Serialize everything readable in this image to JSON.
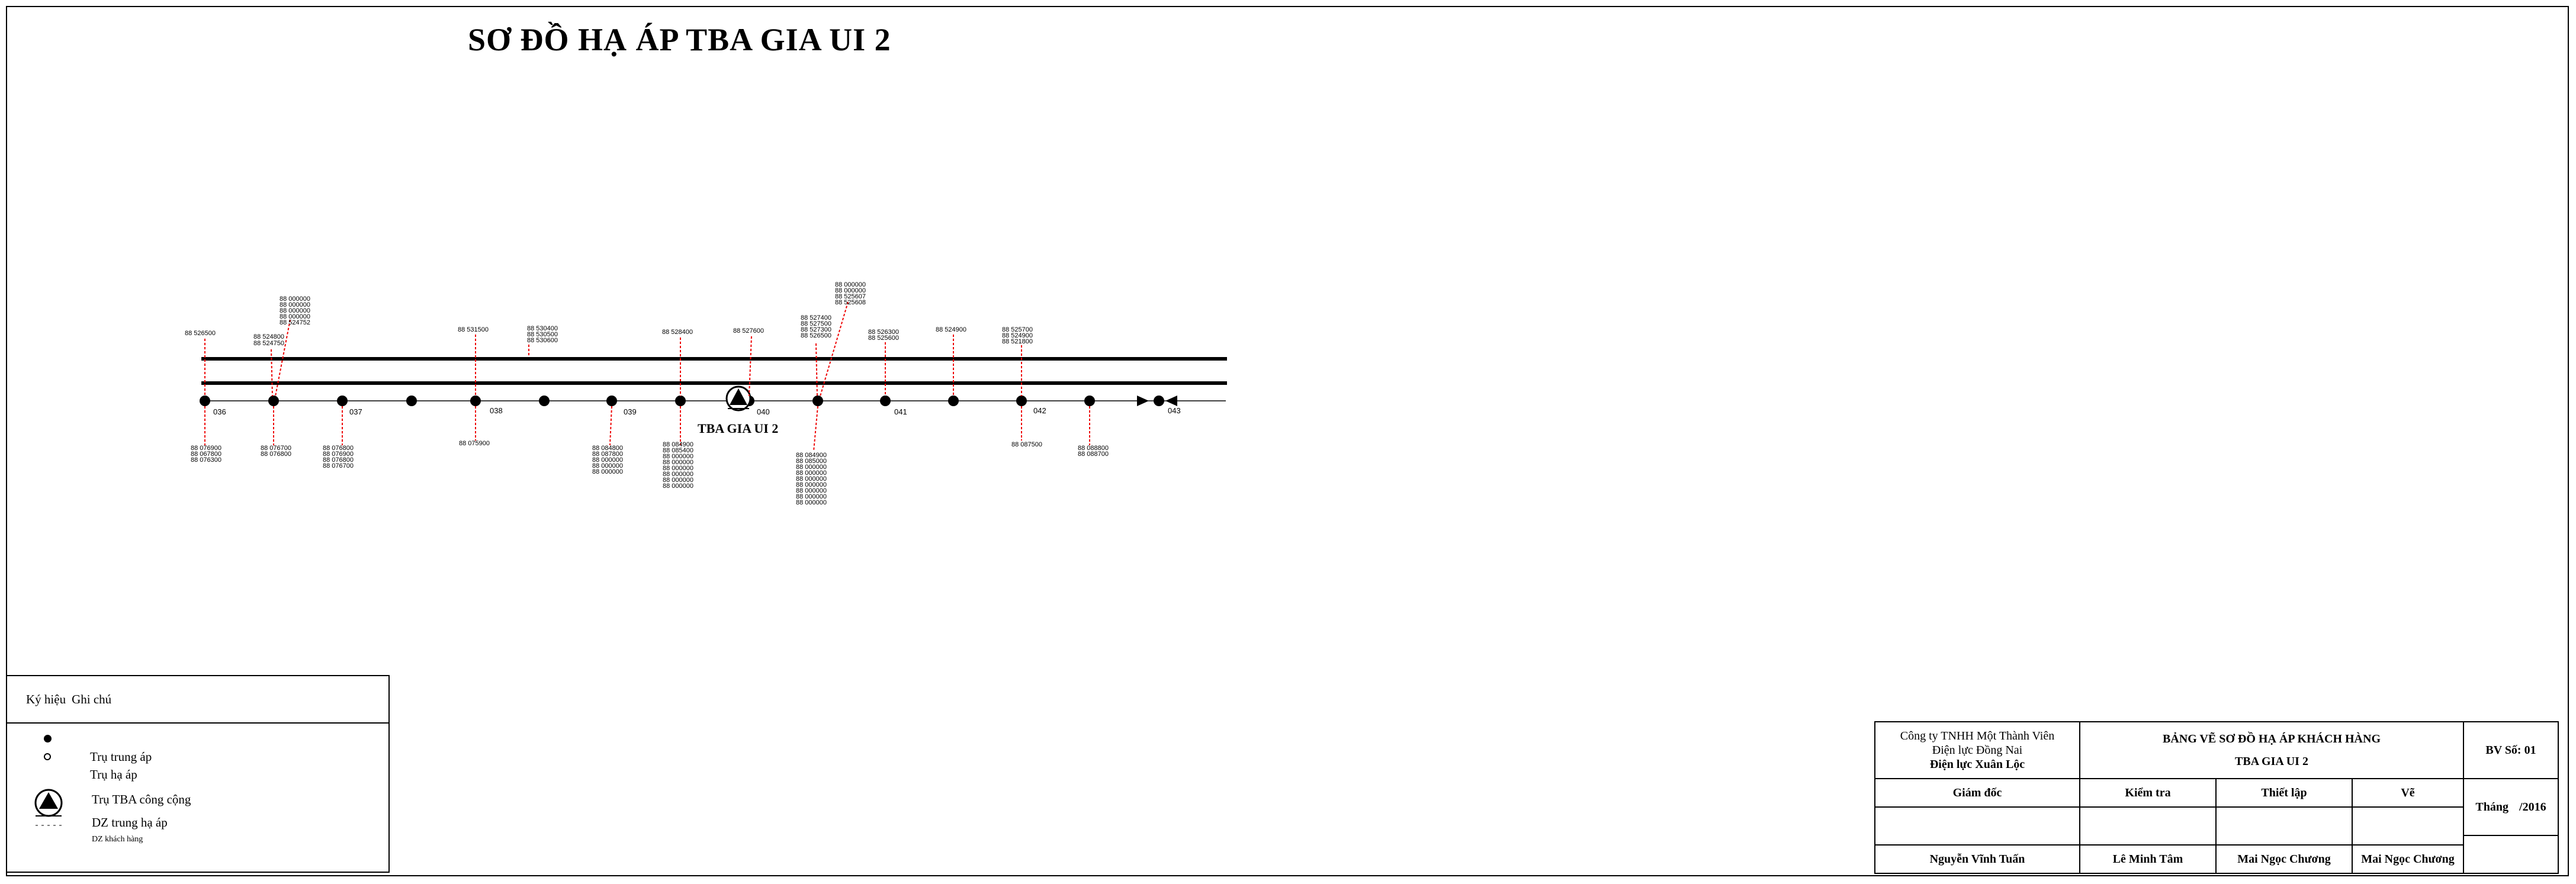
{
  "title": "SƠ ĐỒ HẠ ÁP TBA GIA UI 2",
  "diagram": {
    "tba_label": "TBA GIA UI 2",
    "pole_numbers": [
      "036",
      "037",
      "038",
      "039",
      "040",
      "041",
      "042",
      "043"
    ],
    "meters_above": [
      [
        "88 526500"
      ],
      [
        "88 524800",
        "88 524750"
      ],
      [
        "88 000000",
        "88 000000",
        "88 000000",
        "88 000000",
        "88 524752"
      ],
      [
        "88 531500"
      ],
      [
        "88 530400",
        "88 530500",
        "88 530600"
      ],
      [
        "88 528400"
      ],
      [
        "88 527600"
      ],
      [
        "88 527400",
        "88 527500",
        "88 527300",
        "88 526500"
      ],
      [
        "88 000000",
        "88 000000",
        "88 525607",
        "88 525608"
      ],
      [
        "88 526300",
        "88 525600"
      ],
      [
        "88 524900"
      ],
      [
        "88 525700",
        "88 524900",
        "88 521800"
      ]
    ],
    "meters_below": [
      [
        "88 076900",
        "88 067800",
        "88 076300"
      ],
      [
        "88 076700",
        "88 076800"
      ],
      [
        "88 076800",
        "88 076900",
        "88 076800",
        "88 076700"
      ],
      [
        "88 075900"
      ],
      [
        "88 084800",
        "88 087800",
        "88 000000",
        "88 000000",
        "88 000000"
      ],
      [
        "88 084900",
        "88 085400",
        "88 000000",
        "88 000000",
        "88 000000",
        "88 000000",
        "88 000000",
        "88 000000"
      ],
      [
        "88 084900",
        "88 085000",
        "88 000000",
        "88 000000",
        "88 000000",
        "88 000000",
        "88 000000",
        "88 000000",
        "88 000000"
      ],
      [
        "88 087500"
      ],
      [
        "88 088800",
        "88 088700"
      ]
    ]
  },
  "legend": {
    "header": [
      "Ký hiệu",
      "Ghi chú"
    ],
    "items": [
      "Trụ trung áp",
      "Trụ hạ áp",
      "Trụ TBA công cộng",
      "DZ trung hạ áp",
      "DZ khách hàng"
    ]
  },
  "title_block": {
    "company_line1": "Công ty TNHH Một Thành Viên",
    "company_line2": "Điện lực Đồng Nai",
    "company_line3": "Điện lực Xuân Lộc",
    "drawing_title": "BẢNG VẼ SƠ ĐỒ HẠ ÁP KHÁCH HÀNG",
    "drawing_subtitle": "TBA GIA UI 2",
    "drawing_number": "BV Số: 01",
    "role_director": "Giám đốc",
    "role_check": "Kiểm tra",
    "role_setup": "Thiết lập",
    "role_draw": "Vẽ",
    "name_director": "Nguyễn Vĩnh Tuấn",
    "name_check": "Lê Minh Tâm",
    "name_setup": "Mai Ngọc Chương",
    "name_draw": "Mai Ngọc Chương",
    "date_label": "Tháng",
    "date_year": "/2016"
  }
}
